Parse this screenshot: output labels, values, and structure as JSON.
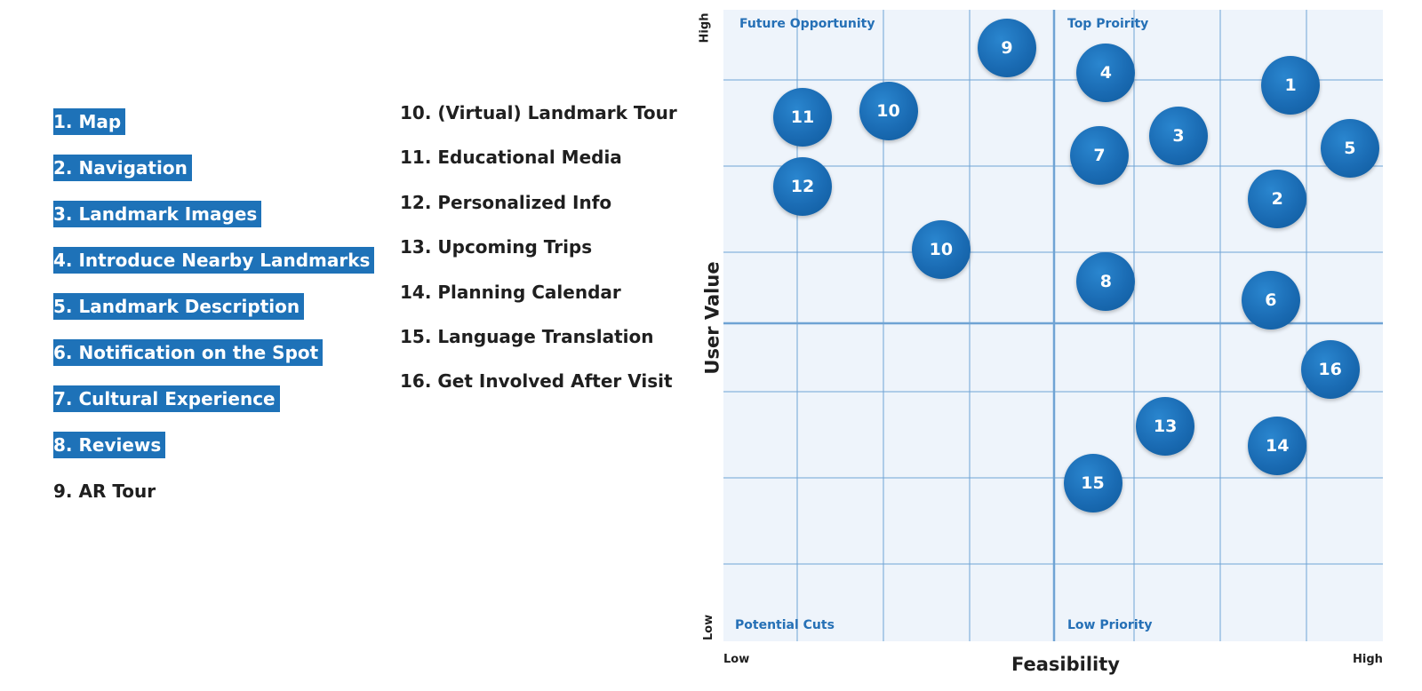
{
  "features_left": [
    {
      "label": " 1. Map",
      "highlighted": true
    },
    {
      "label": "2. Navigation",
      "highlighted": true
    },
    {
      "label": "3. Landmark Images",
      "highlighted": true
    },
    {
      "label": "4. Introduce Nearby Landmarks",
      "highlighted": true
    },
    {
      "label": " 5. Landmark Description",
      "highlighted": true
    },
    {
      "label": "6. Notification on the Spot",
      "highlighted": true
    },
    {
      "label": "7. Cultural Experience ",
      "highlighted": true
    },
    {
      "label": "8. Reviews",
      "highlighted": true
    },
    {
      "label": "9. AR Tour",
      "highlighted": false
    }
  ],
  "features_right": [
    {
      "label": "10. (Virtual) Landmark Tour"
    },
    {
      "label": "11. Educational Media"
    },
    {
      "label": "12. Personalized Info"
    },
    {
      "label": "13. Upcoming Trips"
    },
    {
      "label": "14. Planning Calendar"
    },
    {
      "label": "15. Language Translation"
    },
    {
      "label": "16. Get Involved After Visit"
    }
  ],
  "matrix": {
    "quadrants": {
      "top_left": "Future Opportunity",
      "top_right": "Top Proirity",
      "bottom_left": "Potential Cuts",
      "bottom_right": "Low Priority"
    },
    "y_axis": {
      "title": "User Value",
      "high": "High",
      "low": "Low"
    },
    "x_axis": {
      "title": "Feasibility",
      "low": "Low",
      "high": "High"
    },
    "accent_color": "#1e72b8",
    "background_color": "#eef4fb"
  },
  "chart_data": {
    "type": "scatter",
    "xlabel": "Feasibility",
    "ylabel": "User Value",
    "xlim": [
      0,
      10
    ],
    "ylim": [
      0,
      10
    ],
    "points": [
      {
        "label": "1",
        "x": 8.6,
        "y": 8.8
      },
      {
        "label": "2",
        "x": 8.4,
        "y": 7.0
      },
      {
        "label": "3",
        "x": 6.9,
        "y": 8.0
      },
      {
        "label": "4",
        "x": 5.8,
        "y": 9.0
      },
      {
        "label": "5",
        "x": 9.5,
        "y": 7.8
      },
      {
        "label": "6",
        "x": 8.3,
        "y": 5.4
      },
      {
        "label": "7",
        "x": 5.7,
        "y": 7.7
      },
      {
        "label": "8",
        "x": 5.8,
        "y": 5.7
      },
      {
        "label": "9",
        "x": 4.3,
        "y": 9.4
      },
      {
        "label": "10",
        "x": 2.5,
        "y": 8.4
      },
      {
        "label": "11",
        "x": 1.2,
        "y": 8.3
      },
      {
        "label": "12",
        "x": 1.2,
        "y": 7.2
      },
      {
        "label": "10",
        "x": 3.3,
        "y": 6.2
      },
      {
        "label": "13",
        "x": 6.7,
        "y": 3.4
      },
      {
        "label": "14",
        "x": 8.4,
        "y": 3.1
      },
      {
        "label": "15",
        "x": 5.6,
        "y": 2.5
      },
      {
        "label": "16",
        "x": 9.2,
        "y": 4.3
      }
    ]
  }
}
